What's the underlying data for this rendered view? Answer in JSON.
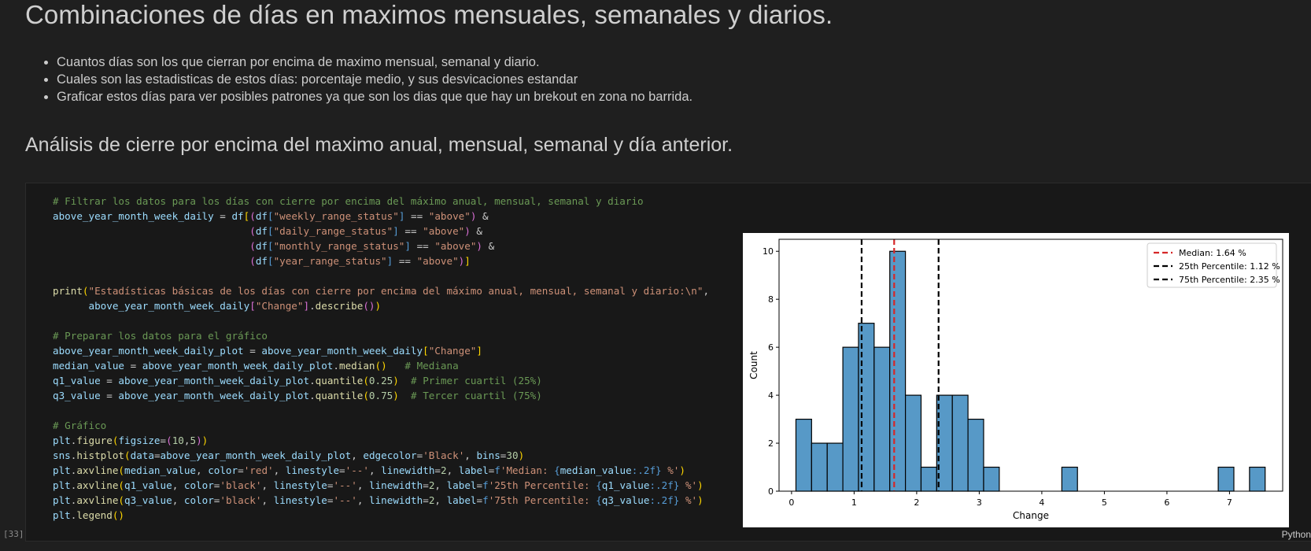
{
  "heading1": "Combinaciones de días en maximos mensuales, semanales y diarios.",
  "bullets": [
    "Cuantos días son los que cierran por encima de maximo mensual, semanal y diario.",
    "Cuales son las estadisticas de estos días: porcentaje medio, y sus desvicaciones estandar",
    "Graficar estos días para ver posibles patrones ya que son los dias que que hay un brekout en zona no barrida."
  ],
  "heading2": "Análisis de cierre por encima del maximo anual, mensual, semanal y día anterior.",
  "cell": {
    "execution_count": "[33]",
    "language": "Python"
  },
  "chart_data": {
    "type": "bar",
    "subtype": "histogram",
    "xlabel": "Change",
    "ylabel": "Count",
    "xlim": [
      -0.2,
      7.85
    ],
    "ylim": [
      0,
      10.5
    ],
    "xticks": [
      0,
      1,
      2,
      3,
      4,
      5,
      6,
      7
    ],
    "yticks": [
      0,
      2,
      4,
      6,
      8,
      10
    ],
    "bin_width": 0.25,
    "bins_start": 0.07,
    "counts": [
      3,
      2,
      2,
      6,
      7,
      6,
      10,
      4,
      1,
      4,
      4,
      3,
      1,
      0,
      0,
      0,
      0,
      1,
      0,
      0,
      0,
      0,
      0,
      0,
      0,
      0,
      0,
      1,
      0,
      1
    ],
    "bar_color": "#5799c7",
    "edge_color": "#000000",
    "vlines": [
      {
        "label": "Median: 1.64 %",
        "x": 1.64,
        "color": "#d62728"
      },
      {
        "label": "25th Percentile: 1.12 %",
        "x": 1.12,
        "color": "#000000"
      },
      {
        "label": "75th Percentile: 2.35 %",
        "x": 2.35,
        "color": "#000000"
      }
    ],
    "legend_position": "top-right"
  }
}
